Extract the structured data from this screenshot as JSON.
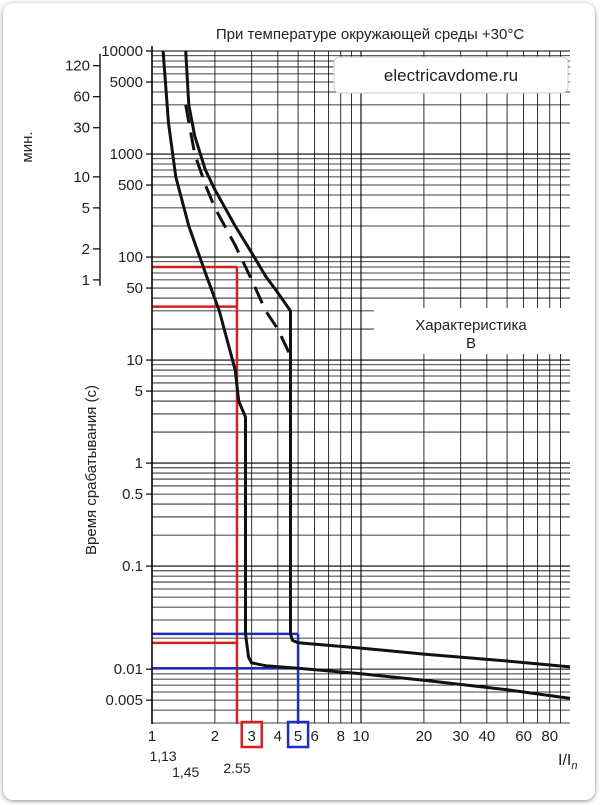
{
  "chart_data": {
    "type": "line",
    "title": "При температуре окружающей среды +30°C",
    "watermark": "electricavdome.ru",
    "annotation": "Характеристика\nB",
    "xlabel": "I/In",
    "ylabel": "Время срабатывания (с)",
    "minutes_label": "мин.",
    "x_scale": "log",
    "y_scale": "log",
    "xlim": [
      1,
      100
    ],
    "ylim": [
      0.003,
      10000
    ],
    "x_ticks": [
      {
        "v": 1,
        "label": "1"
      },
      {
        "v": 2,
        "label": "2"
      },
      {
        "v": 3,
        "label": "3"
      },
      {
        "v": 4,
        "label": "4"
      },
      {
        "v": 5,
        "label": "5"
      },
      {
        "v": 6,
        "label": "6"
      },
      {
        "v": 8,
        "label": "8"
      },
      {
        "v": 10,
        "label": "10"
      },
      {
        "v": 20,
        "label": "20"
      },
      {
        "v": 30,
        "label": "30"
      },
      {
        "v": 40,
        "label": "40"
      },
      {
        "v": 60,
        "label": "60"
      },
      {
        "v": 80,
        "label": "80"
      }
    ],
    "x_extra_labels": [
      {
        "v": 1.13,
        "label": "1,13"
      },
      {
        "v": 1.45,
        "label": "1,45"
      },
      {
        "v": 2.55,
        "label": "2.55"
      }
    ],
    "y_ticks_seconds": [
      {
        "v": 10000,
        "label": "10000"
      },
      {
        "v": 5000,
        "label": "5000"
      },
      {
        "v": 1000,
        "label": "1000"
      },
      {
        "v": 500,
        "label": "500"
      },
      {
        "v": 100,
        "label": "100"
      },
      {
        "v": 50,
        "label": "50"
      },
      {
        "v": 10,
        "label": "10"
      },
      {
        "v": 5,
        "label": "5"
      },
      {
        "v": 1,
        "label": "1"
      },
      {
        "v": 0.5,
        "label": "0.5"
      },
      {
        "v": 0.1,
        "label": "0.1"
      },
      {
        "v": 0.01,
        "label": "0.01"
      },
      {
        "v": 0.005,
        "label": "0.005"
      }
    ],
    "y_ticks_minutes": [
      {
        "v": 120,
        "label": "120"
      },
      {
        "v": 60,
        "label": "60"
      },
      {
        "v": 30,
        "label": "30"
      },
      {
        "v": 10,
        "label": "10"
      },
      {
        "v": 5,
        "label": "5"
      },
      {
        "v": 2,
        "label": "2"
      },
      {
        "v": 1,
        "label": "1"
      }
    ],
    "series": [
      {
        "name": "upper-bound",
        "style": "solid",
        "points": [
          [
            1.45,
            10000
          ],
          [
            1.5,
            3000
          ],
          [
            1.6,
            1500
          ],
          [
            1.8,
            700
          ],
          [
            2.0,
            450
          ],
          [
            2.5,
            200
          ],
          [
            3.0,
            110
          ],
          [
            3.5,
            65
          ],
          [
            4.0,
            45
          ],
          [
            4.6,
            30
          ],
          [
            4.6,
            0.022
          ],
          [
            4.7,
            0.019
          ],
          [
            5.0,
            0.018
          ],
          [
            10,
            0.016
          ],
          [
            20,
            0.014
          ],
          [
            50,
            0.012
          ],
          [
            100,
            0.0105
          ]
        ]
      },
      {
        "name": "upper-bound-30C",
        "style": "dashed",
        "points": [
          [
            1.45,
            3000
          ],
          [
            1.6,
            1000
          ],
          [
            1.8,
            500
          ],
          [
            2.0,
            300
          ],
          [
            2.5,
            130
          ],
          [
            3.0,
            60
          ],
          [
            3.5,
            30
          ],
          [
            4.0,
            20
          ],
          [
            4.6,
            11
          ]
        ]
      },
      {
        "name": "lower-bound",
        "style": "solid",
        "points": [
          [
            1.13,
            10000
          ],
          [
            1.2,
            2000
          ],
          [
            1.3,
            600
          ],
          [
            1.5,
            200
          ],
          [
            1.8,
            70
          ],
          [
            2.1,
            30
          ],
          [
            2.5,
            8
          ],
          [
            2.6,
            4
          ],
          [
            2.8,
            2.8
          ],
          [
            2.8,
            0.022
          ],
          [
            2.9,
            0.013
          ],
          [
            3.0,
            0.0115
          ],
          [
            3.5,
            0.0108
          ],
          [
            5.0,
            0.0102
          ],
          [
            10,
            0.009
          ],
          [
            20,
            0.0078
          ],
          [
            50,
            0.0063
          ],
          [
            100,
            0.0052
          ]
        ]
      }
    ],
    "markers": [
      {
        "color": "#d32020",
        "x": 2.55,
        "y_values": [
          80,
          33,
          0.018
        ],
        "x_label": "3"
      },
      {
        "color": "#1e2fbf",
        "x": 5,
        "y_values": [
          0.022,
          0.0102
        ],
        "x_label": "5"
      }
    ]
  }
}
